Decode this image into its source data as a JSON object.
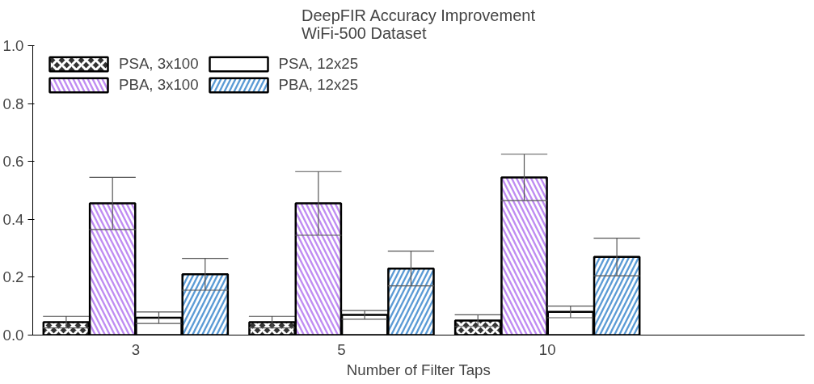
{
  "chart_data": {
    "type": "bar",
    "title": "DeepFIR Accuracy Improvement\nWiFi-500 Dataset",
    "xlabel": "Number of Filter Taps",
    "categories": [
      "3",
      "5",
      "10"
    ],
    "series": [
      {
        "name": "PSA, 3x100",
        "color": "#333333",
        "values": [
          0.045,
          0.045,
          0.05
        ],
        "errors": [
          0.02,
          0.02,
          0.02
        ]
      },
      {
        "name": "PBA, 3x100",
        "color": "#bf8cf2",
        "values": [
          0.455,
          0.455,
          0.545
        ],
        "errors": [
          0.09,
          0.11,
          0.08
        ]
      },
      {
        "name": "PSA, 12x25",
        "color": "#ffffff",
        "values": [
          0.06,
          0.07,
          0.08
        ],
        "errors": [
          0.02,
          0.015,
          0.02
        ]
      },
      {
        "name": "PBA, 12x25",
        "color": "#5b9bd5",
        "values": [
          0.21,
          0.23,
          0.27
        ],
        "errors": [
          0.055,
          0.06,
          0.065
        ]
      }
    ],
    "ylim": [
      0,
      1
    ],
    "yticks": [
      {
        "value": 0,
        "label": "0.0"
      },
      {
        "value": 0.2,
        "label": "0.2"
      },
      {
        "value": 0.4,
        "label": "0.4"
      },
      {
        "value": 0.6,
        "label": "0.6"
      },
      {
        "value": 0.8,
        "label": "0.8"
      },
      {
        "value": 1,
        "label": "1.0"
      }
    ],
    "grid": false,
    "legend": "top left"
  }
}
